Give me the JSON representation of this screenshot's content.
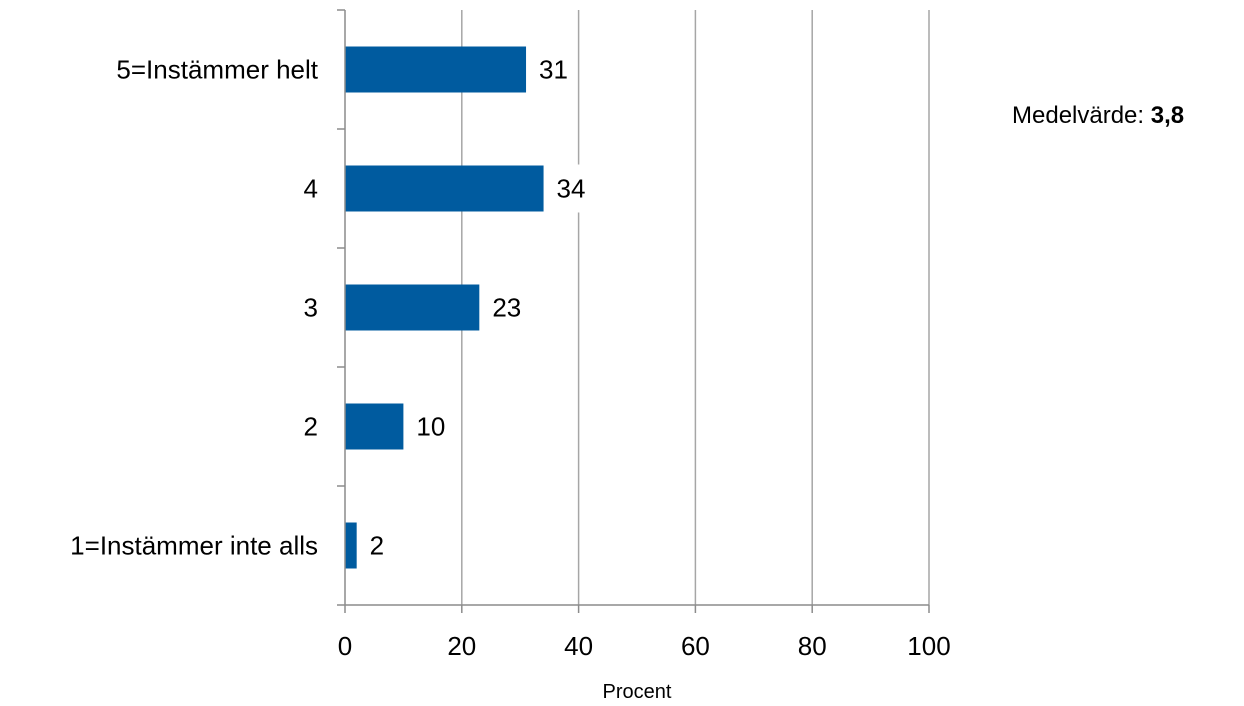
{
  "chart_data": {
    "type": "bar",
    "orientation": "horizontal",
    "categories": [
      "5=Instämmer helt",
      "4",
      "3",
      "2",
      "1=Instämmer inte alls"
    ],
    "values": [
      31,
      34,
      23,
      10,
      2
    ],
    "data_labels": [
      "31",
      "34",
      "23",
      "10",
      "2"
    ],
    "xlabel": "Procent",
    "ylabel": "",
    "title": "",
    "xlim": [
      0,
      100
    ],
    "xticks": [
      0,
      20,
      40,
      60,
      80,
      100
    ],
    "grid": true,
    "legend": "none",
    "bar_color": "#005b9f",
    "grid_color": "#a6a6a6",
    "axis_color": "#8c8c8c"
  },
  "annotation": {
    "label": "Medelvärde:",
    "value": "3,8"
  }
}
